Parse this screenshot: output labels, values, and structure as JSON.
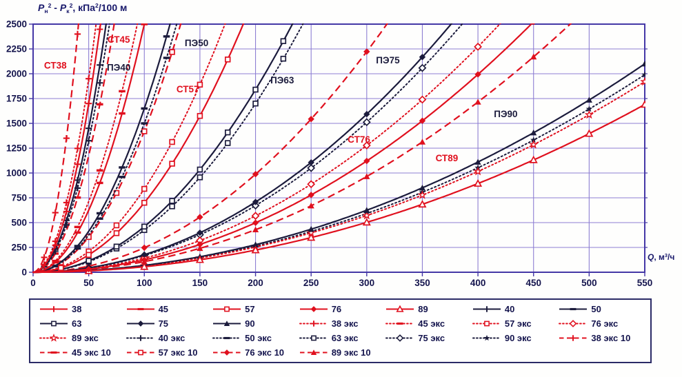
{
  "chart_data": {
    "type": "line",
    "title": "",
    "model": "P_n2 - P_k2 = k * Q^2, kPa^2 per 100 m (quadratic fit of digitized curves)",
    "x_axis": {
      "segments": [
        {
          "t": "Q",
          "it": 1
        },
        {
          "t": ", м"
        },
        {
          "t": "3",
          "sup": 1
        },
        {
          "t": "/ч"
        }
      ],
      "min": 0,
      "max": 550,
      "tick_step": 50,
      "ticks": [
        0,
        50,
        100,
        150,
        200,
        250,
        300,
        350,
        400,
        450,
        500,
        550
      ]
    },
    "y_axis": {
      "segments": [
        {
          "t": "P",
          "it": 1
        },
        {
          "t": "н",
          "sub": 1
        },
        {
          "t": "2",
          "sup": 1
        },
        {
          "t": " - "
        },
        {
          "t": "P",
          "it": 1
        },
        {
          "t": "к",
          "sub": 1
        },
        {
          "t": "2",
          "sup": 1
        },
        {
          "t": ", кПа"
        },
        {
          "t": "2",
          "sup": 1
        },
        {
          "t": "/100 м"
        }
      ],
      "min": 0,
      "max": 2500,
      "tick_step": 250,
      "ticks": [
        0,
        250,
        500,
        750,
        1000,
        1250,
        1500,
        1750,
        2000,
        2250,
        2500
      ]
    },
    "grid": {
      "vertical_step": 50,
      "horizontal_step": 250,
      "on": true
    },
    "legend_position": "bottom",
    "colors": {
      "steel": "#e0101e",
      "pe": "#1b1b3c",
      "grid": "#8d7ed2",
      "border": "#4437a6",
      "tick_text": "#14144d"
    },
    "series": [
      {
        "label": "38",
        "color": "steel",
        "dash": "solid",
        "marker": "plus",
        "k": 0.68,
        "marker_step": 10
      },
      {
        "label": "45",
        "color": "steel",
        "dash": "solid",
        "marker": "dash",
        "k": 0.25,
        "marker_step": 20
      },
      {
        "label": "57",
        "color": "steel",
        "dash": "solid",
        "marker": "square-open",
        "k": 0.07,
        "marker_step": 25
      },
      {
        "label": "76",
        "color": "steel",
        "dash": "solid",
        "marker": "diamond",
        "k": 0.01246,
        "marker_step": 50
      },
      {
        "label": "89",
        "color": "steel",
        "dash": "solid",
        "marker": "triangle-open",
        "k": 0.005587,
        "marker_step": 50
      },
      {
        "label": "40",
        "color": "pe",
        "dash": "solid",
        "marker": "plus",
        "k": 0.58,
        "marker_step": 10
      },
      {
        "label": "50",
        "color": "pe",
        "dash": "solid",
        "marker": "dash",
        "k": 0.165,
        "marker_step": 20
      },
      {
        "label": "63",
        "color": "pe",
        "dash": "solid",
        "marker": "square-open",
        "k": 0.046,
        "marker_step": 25
      },
      {
        "label": "75",
        "color": "pe",
        "dash": "solid",
        "marker": "diamond",
        "k": 0.0177,
        "marker_step": 50
      },
      {
        "label": "90",
        "color": "pe",
        "dash": "solid",
        "marker": "triangle",
        "k": 0.006942,
        "marker_step": 50
      },
      {
        "label": "38 экс",
        "color": "steel",
        "dash": "dotted",
        "marker": "plus",
        "k": 0.78,
        "marker_step": 10
      },
      {
        "label": "45 экс",
        "color": "steel",
        "dash": "dotted",
        "marker": "dash",
        "k": 0.285,
        "marker_step": 20
      },
      {
        "label": "57 экс",
        "color": "steel",
        "dash": "dotted",
        "marker": "square-open",
        "k": 0.084,
        "marker_step": 25
      },
      {
        "label": "76 экс",
        "color": "steel",
        "dash": "dotted",
        "marker": "diamond-open",
        "k": 0.0142,
        "marker_step": 50
      },
      {
        "label": "89 экс",
        "color": "steel",
        "dash": "dotted",
        "marker": "star-open",
        "k": 0.006347,
        "marker_step": 50
      },
      {
        "label": "40 экс",
        "color": "pe",
        "dash": "dotted",
        "marker": "plus",
        "k": 0.53,
        "marker_step": 10
      },
      {
        "label": "50 экс",
        "color": "pe",
        "dash": "dotted",
        "marker": "dash",
        "k": 0.15,
        "marker_step": 20
      },
      {
        "label": "63 экс",
        "color": "pe",
        "dash": "dotted",
        "marker": "square-open",
        "k": 0.0425,
        "marker_step": 25
      },
      {
        "label": "75 экс",
        "color": "pe",
        "dash": "dotted",
        "marker": "diamond-open",
        "k": 0.0168,
        "marker_step": 50
      },
      {
        "label": "90 экс",
        "color": "pe",
        "dash": "dotted",
        "marker": "star",
        "k": 0.006579,
        "marker_step": 50
      },
      {
        "label": "38 экс 10",
        "color": "steel",
        "dash": "dashed",
        "marker": "plus",
        "k": 1.5,
        "marker_step": 10
      },
      {
        "label": "45 экс 10",
        "color": "steel",
        "dash": "dashed",
        "marker": "dash",
        "k": 0.47,
        "marker_step": 20
      },
      {
        "label": "57 экс 10",
        "color": "steel",
        "dash": "dashed",
        "marker": "square-open",
        "k": 0.142,
        "marker_step": 25
      },
      {
        "label": "76 экс 10",
        "color": "steel",
        "dash": "dashed",
        "marker": "diamond",
        "k": 0.0247,
        "marker_step": 50
      },
      {
        "label": "89 экс 10",
        "color": "steel",
        "dash": "dashed",
        "marker": "triangle",
        "k": 0.01072,
        "marker_step": 50
      }
    ],
    "annotations": [
      {
        "text": "СТ38",
        "q": 20,
        "p": 2080,
        "color": "steel"
      },
      {
        "text": "СТ45",
        "q": 77,
        "p": 2340,
        "color": "steel"
      },
      {
        "text": "ПЭ40",
        "q": 77,
        "p": 2060,
        "color": "pe"
      },
      {
        "text": "ПЭ50",
        "q": 147,
        "p": 2306,
        "color": "pe"
      },
      {
        "text": "СТ57",
        "q": 139,
        "p": 1840,
        "color": "steel"
      },
      {
        "text": "ПЭ63",
        "q": 224,
        "p": 1930,
        "color": "pe"
      },
      {
        "text": "ПЭ75",
        "q": 319,
        "p": 2132,
        "color": "pe"
      },
      {
        "text": "СТ76",
        "q": 293,
        "p": 1333,
        "color": "steel"
      },
      {
        "text": "СТ89",
        "q": 372,
        "p": 1146,
        "color": "steel"
      },
      {
        "text": "ПЭ90",
        "q": 425,
        "p": 1590,
        "color": "pe"
      }
    ]
  }
}
